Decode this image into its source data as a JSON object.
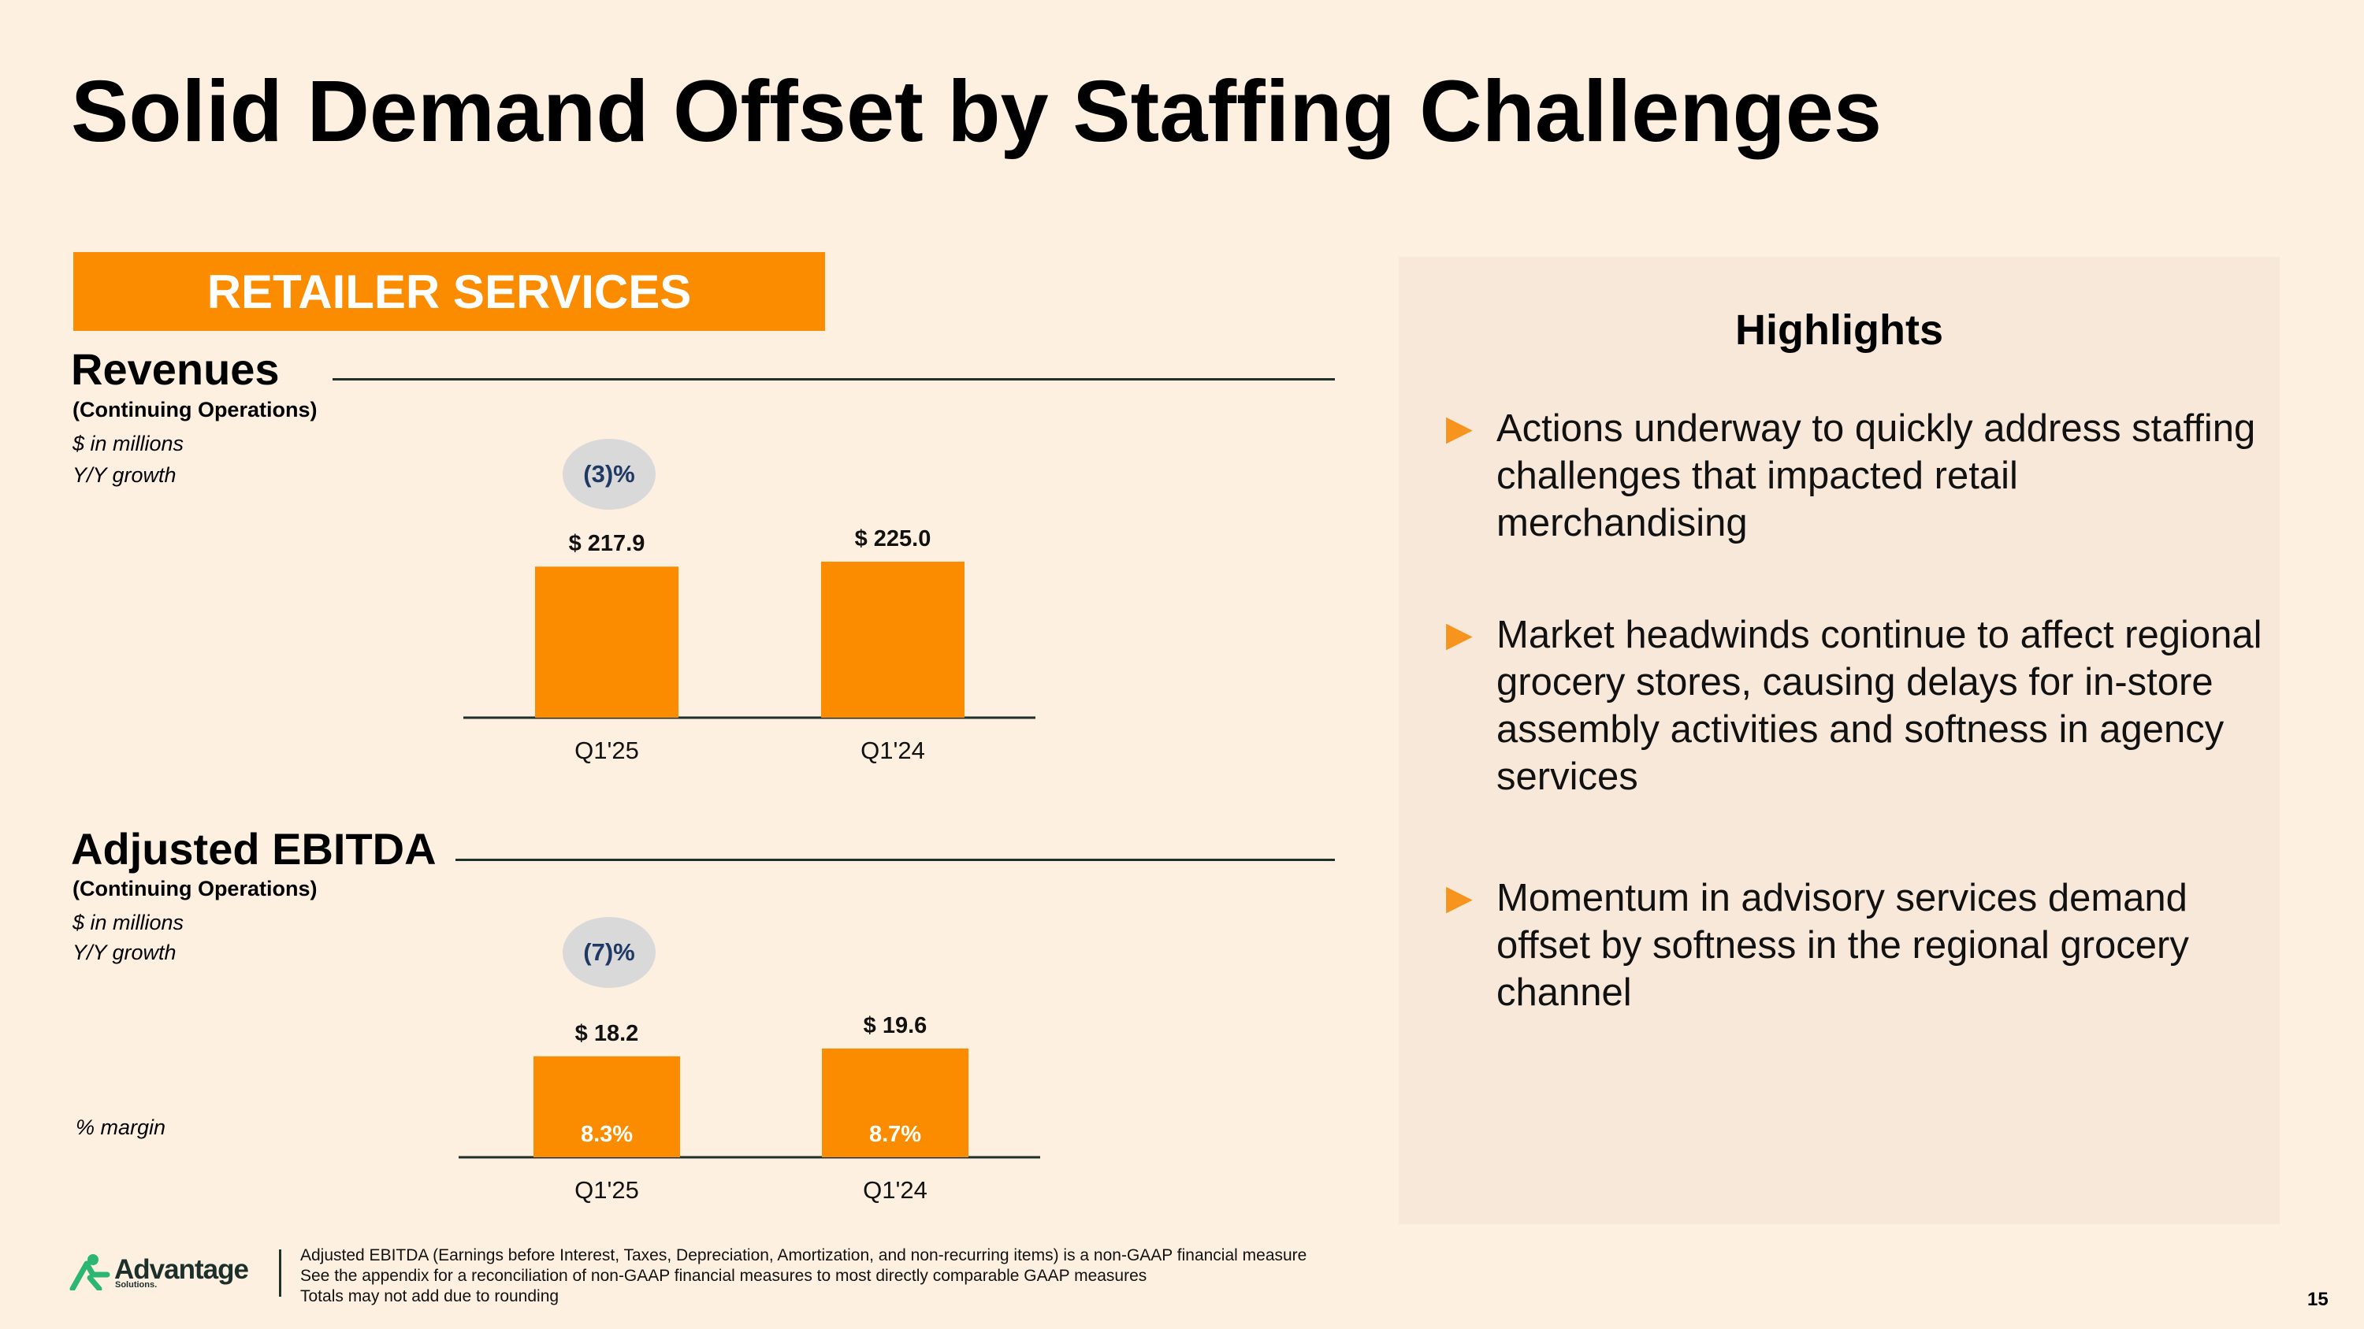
{
  "slide": {
    "title": "Solid Demand Offset by Staffing Challenges",
    "segment": "RETAILER SERVICES",
    "page_number": "15"
  },
  "colors": {
    "accent": "#fb8c00",
    "background": "#fdf0e1",
    "panel": "#f7e8d9",
    "pill": "#d9d9d9",
    "pill_text": "#1f3864",
    "arrow": "#f7941d"
  },
  "revenues": {
    "title": "Revenues",
    "subtitle": "(Continuing Operations)",
    "units_note": "$ in millions",
    "growth_note": "Y/Y growth",
    "growth": "(3)%"
  },
  "ebitda": {
    "title": "Adjusted EBITDA",
    "subtitle": "(Continuing Operations)",
    "units_note": "$ in millions",
    "growth_note": "Y/Y growth",
    "growth": "(7)%",
    "margin_note": "% margin"
  },
  "chart_data": [
    {
      "type": "bar",
      "title": "Revenues",
      "categories": [
        "Q1'25",
        "Q1'24"
      ],
      "values": [
        217.9,
        225.0
      ],
      "value_labels": [
        "$ 217.9",
        "$ 225.0"
      ],
      "ylabel": "$ in millions",
      "ylim": [
        0,
        225
      ],
      "grid": false
    },
    {
      "type": "bar",
      "title": "Adjusted EBITDA",
      "categories": [
        "Q1'25",
        "Q1'24"
      ],
      "values": [
        18.2,
        19.6
      ],
      "value_labels": [
        "$ 18.2",
        "$ 19.6"
      ],
      "margins": [
        "8.3%",
        "8.7%"
      ],
      "ylabel": "$ in millions",
      "ylim": [
        0,
        19.6
      ],
      "grid": false
    }
  ],
  "highlights": {
    "title": "Highlights",
    "bullets": [
      "Actions underway to quickly address staffing challenges that impacted retail merchandising",
      "Market headwinds continue to affect regional grocery stores, causing delays for in-store assembly activities and softness in agency services",
      "Momentum in advisory services demand offset by softness in the regional grocery channel"
    ]
  },
  "footer": {
    "logo_name": "Advantage",
    "logo_sub": "Solutions.",
    "notes": [
      "Adjusted EBITDA (Earnings before Interest, Taxes, Depreciation, Amortization, and non-recurring items) is a non-GAAP financial measure",
      "See the appendix for a reconciliation of non-GAAP financial measures to most directly comparable GAAP measures",
      "Totals may not add due to rounding"
    ]
  }
}
